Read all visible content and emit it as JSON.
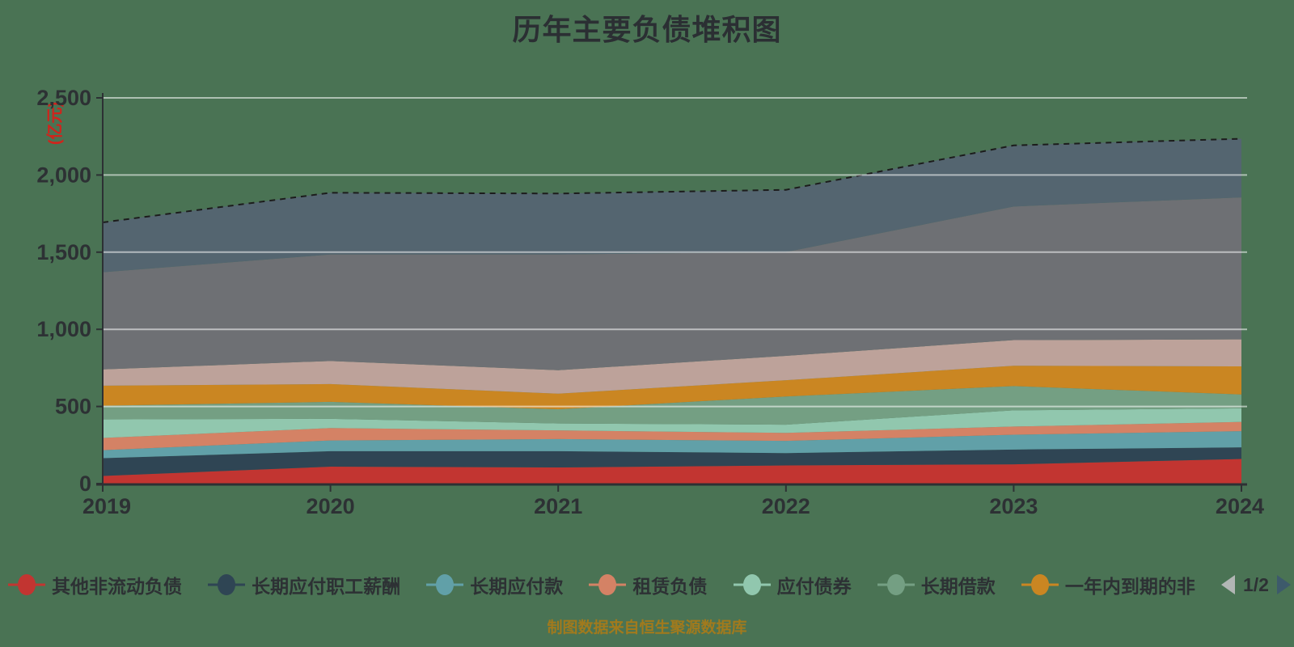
{
  "title": "历年主要负债堆积图",
  "y_axis": {
    "unit": "(亿元)",
    "tick_labels": [
      "0",
      "500",
      "1,000",
      "1,500",
      "2,000",
      "2,500"
    ],
    "tick_values": [
      0,
      500,
      1000,
      1500,
      2000,
      2500
    ]
  },
  "x_axis": {
    "tick_labels": [
      "2019",
      "2020",
      "2021",
      "2022",
      "2023",
      "2024"
    ]
  },
  "legend": {
    "page": "1/2",
    "visible_item_count": 7
  },
  "footer": {
    "text": "制图数据来自恒生聚源数据库"
  },
  "colors": {
    "background": "#4a7354",
    "title_text": "#2b2f33",
    "axis_line": "#2d3134",
    "axis_text": "#2d3134",
    "gridline": "rgba(255,255,255,0.55)",
    "y_unit_text": "#d0241c",
    "footer_text": "#a17a1d",
    "top_edge_dash": "#1c1c1c",
    "pager_prev": "#b2b6b5",
    "pager_next": "#3d5a6b"
  },
  "chart_data": {
    "type": "area",
    "stacked": true,
    "grid": true,
    "legend_position": "bottom",
    "x": [
      "2019",
      "2020",
      "2021",
      "2022",
      "2023",
      "2024"
    ],
    "ylim": [
      0,
      2500
    ],
    "series": [
      {
        "name": "其他非流动负债",
        "color": "#c23531",
        "legend_page": 1,
        "values": [
          50,
          110,
          105,
          118,
          125,
          160
        ]
      },
      {
        "name": "长期应付职工薪酬",
        "color": "#2f4554",
        "legend_page": 1,
        "values": [
          115,
          100,
          105,
          80,
          96,
          75
        ]
      },
      {
        "name": "长期应付款",
        "color": "#61a0a8",
        "legend_page": 1,
        "values": [
          52,
          70,
          79,
          79,
          96,
          105
        ]
      },
      {
        "name": "租赁负债",
        "color": "#d48265",
        "legend_page": 1,
        "values": [
          79,
          80,
          56,
          52,
          53,
          60
        ]
      },
      {
        "name": "应付债券",
        "color": "#91c7ae",
        "legend_page": 1,
        "values": [
          120,
          60,
          45,
          53,
          105,
          88
        ]
      },
      {
        "name": "长期借款",
        "color": "#749f83",
        "legend_page": 1,
        "values": [
          89,
          110,
          92,
          183,
          157,
          90
        ]
      },
      {
        "name": "一年内到期的非",
        "color": "#ca8622",
        "legend_page": 1,
        "values": [
          130,
          115,
          101,
          105,
          132,
          182
        ]
      },
      {
        "name": "",
        "color": "#bda29a",
        "legend_page": 2,
        "values": [
          105,
          150,
          152,
          158,
          166,
          175
        ]
      },
      {
        "name": "",
        "color": "#6e7074",
        "legend_page": 2,
        "values": [
          630,
          690,
          750,
          673,
          866,
          920
        ]
      },
      {
        "name": "",
        "color": "#546570",
        "legend_page": 2,
        "values": [
          323,
          400,
          395,
          403,
          396,
          380
        ]
      }
    ],
    "stack_totals": [
      1693,
      1885,
      1880,
      1904,
      2192,
      2235
    ]
  }
}
